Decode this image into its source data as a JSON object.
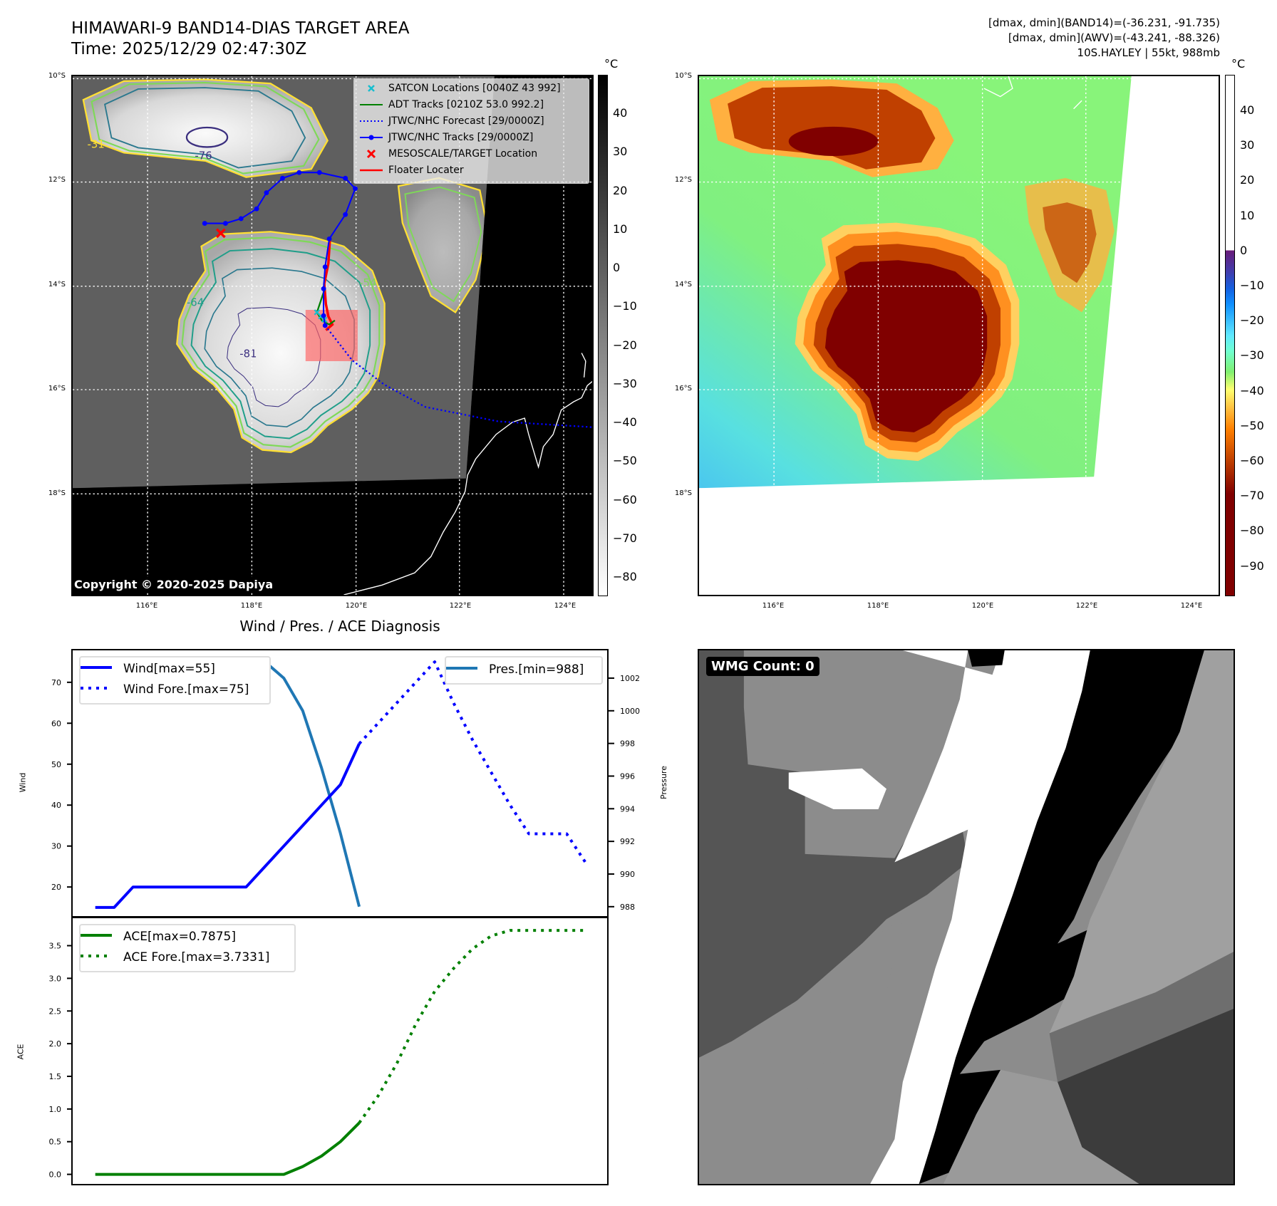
{
  "header": {
    "title": "HIMAWARI-9 BAND14-DIAS TARGET AREA",
    "time": "Time: 2025/12/29 02:47:30Z",
    "stats_band14": "[dmax, dmin](BAND14)=(-36.231, -91.735)",
    "stats_awv": "[dmax, dmin](AWV)=(-43.241, -88.326)",
    "storm": "10S.HAYLEY | 55kt, 988mb"
  },
  "maps": {
    "lat_labels": [
      "10°S",
      "12°S",
      "14°S",
      "16°S",
      "18°S"
    ],
    "lon_labels": [
      "116°E",
      "118°E",
      "120°E",
      "122°E",
      "124°E"
    ],
    "unit": "°C",
    "contour_labels": [
      "-31",
      "-54",
      "-64",
      "-76",
      "-81"
    ],
    "copyright": "Copyright © 2020-2025 Dapiya",
    "colorbar1_ticks": [
      "40",
      "30",
      "20",
      "10",
      "0",
      "−10",
      "−20",
      "−30",
      "−40",
      "−50",
      "−60",
      "−70",
      "−80"
    ],
    "colorbar2_ticks": [
      "40",
      "30",
      "20",
      "10",
      "0",
      "−10",
      "−20",
      "−30",
      "−40",
      "−50",
      "−60",
      "−70",
      "−80",
      "−90"
    ],
    "legend": [
      {
        "label": "SATCON Locations [0040Z 43 992]",
        "color": "#17becf"
      },
      {
        "label": "ADT Tracks [0210Z 53.0 992.2]",
        "color": "#008000"
      },
      {
        "label": "JTWC/NHC Forecast [29/0000Z]",
        "color": "#0000ff"
      },
      {
        "label": "JTWC/NHC Tracks [29/0000Z]",
        "color": "#0000ff"
      },
      {
        "label": "MESOSCALE/TARGET Location",
        "color": "#ff0000"
      },
      {
        "label": "Floater Locater",
        "color": "#ff0000"
      }
    ],
    "jtwc_track": [
      [
        117.1,
        -12.79
      ],
      [
        117.5,
        -12.79
      ],
      [
        117.8,
        -12.7
      ],
      [
        118.1,
        -12.51
      ],
      [
        118.29,
        -12.2
      ],
      [
        118.6,
        -11.92
      ],
      [
        118.92,
        -11.81
      ],
      [
        119.31,
        -11.81
      ],
      [
        119.81,
        -11.92
      ],
      [
        120.0,
        -12.12
      ],
      [
        119.81,
        -12.62
      ],
      [
        119.5,
        -13.09
      ],
      [
        119.42,
        -13.63
      ],
      [
        119.39,
        -14.05
      ],
      [
        119.39,
        -14.57
      ],
      [
        119.42,
        -14.76
      ]
    ],
    "jtwc_forecast": [
      [
        119.42,
        -14.76
      ],
      [
        119.94,
        -15.43
      ],
      [
        120.56,
        -15.9
      ],
      [
        121.35,
        -16.33
      ],
      [
        122.76,
        -16.61
      ],
      [
        124.56,
        -16.72
      ]
    ],
    "target_location": [
      117.41,
      -12.98
    ]
  },
  "wmg": {
    "label": "WMG Count: 0"
  },
  "chart_data": [
    {
      "type": "line",
      "title": "Wind / Pres. / ACE Diagnosis",
      "ylabel": "Wind",
      "y2label": "Pressure",
      "ylim": [
        12.2,
        77.8
      ],
      "y2lim": [
        987.25,
        1003.7
      ],
      "xlim": [
        -1.2,
        27.3
      ],
      "yticks": [
        20,
        30,
        40,
        50,
        60,
        70
      ],
      "y2ticks": [
        988,
        990,
        992,
        994,
        996,
        998,
        1000,
        1002
      ],
      "series": [
        {
          "name": "Wind[max=55]",
          "color": "#0000ff",
          "style": "solid",
          "x": [
            0,
            1,
            2,
            3,
            4,
            5,
            6,
            7,
            8,
            9,
            10,
            11,
            12,
            13,
            14
          ],
          "values": [
            15,
            15,
            20,
            20,
            20,
            20,
            20,
            20,
            20,
            25,
            30,
            35,
            40,
            45,
            55
          ]
        },
        {
          "name": "Wind Fore.[max=75]",
          "color": "#0000ff",
          "style": "dotted",
          "x": [
            14,
            15,
            16,
            17,
            18,
            19,
            20,
            21,
            22,
            23,
            24,
            25,
            26
          ],
          "values": [
            55,
            60,
            65,
            70,
            75,
            65,
            56,
            48,
            40,
            33,
            33,
            33,
            26
          ]
        },
        {
          "name": "Pres.[min=988]",
          "color": "#1f77b4",
          "style": "solid",
          "axis": "right",
          "x": [
            0,
            1,
            2,
            3,
            4,
            5,
            6,
            7,
            8,
            9,
            10,
            11,
            12,
            13,
            14
          ],
          "values": [
            1003,
            1003,
            1003,
            1003,
            1003,
            1003,
            1003,
            1003,
            1003,
            1003,
            1002,
            1000,
            996.5,
            992.5,
            988
          ]
        }
      ]
    },
    {
      "type": "line",
      "ylabel": "ACE",
      "ylim": [
        -0.19,
        3.92
      ],
      "xlim": [
        -1.2,
        27.3
      ],
      "yticks": [
        "0.0",
        "0.5",
        "1.0",
        "1.5",
        "2.0",
        "2.5",
        "3.0",
        "3.5"
      ],
      "series": [
        {
          "name": "ACE[max=0.7875]",
          "color": "#008000",
          "style": "solid",
          "x": [
            0,
            1,
            2,
            3,
            4,
            5,
            6,
            7,
            8,
            9,
            10,
            11,
            12,
            13,
            14
          ],
          "values": [
            0,
            0,
            0,
            0,
            0,
            0,
            0,
            0,
            0,
            0,
            0,
            0.12,
            0.28,
            0.5,
            0.7875
          ]
        },
        {
          "name": "ACE Fore.[max=3.7331]",
          "color": "#008000",
          "style": "dotted",
          "x": [
            14,
            15,
            16,
            17,
            18,
            19,
            20,
            21,
            22,
            23,
            24,
            25,
            26
          ],
          "values": [
            0.7875,
            1.2,
            1.7,
            2.3,
            2.8,
            3.15,
            3.45,
            3.65,
            3.7331,
            3.7331,
            3.7331,
            3.7331,
            3.7331
          ]
        }
      ]
    }
  ]
}
